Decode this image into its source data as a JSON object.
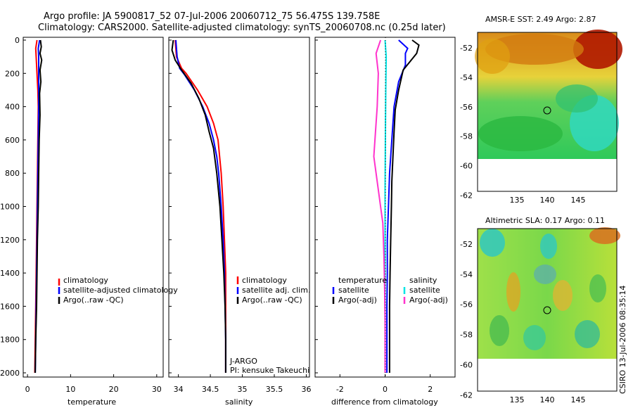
{
  "header": {
    "title_line1": "Argo profile: JA 5900817_52 07-Jul-2006 20060712_75 56.475S 139.758E",
    "title_line2": "Climatology: CARS2000. Satellite-adjusted climatology: synTS_20060708.nc (0.25d later)"
  },
  "side_label": "CSIRO 13-Jul-2006 08:35:14",
  "colors": {
    "red": "#ff0000",
    "blue": "#0000ff",
    "black": "#000000",
    "cyan": "#00e5e5",
    "magenta": "#ff33cc"
  },
  "panels": {
    "temperature": {
      "xlabel": "temperature",
      "xticks": [
        "0",
        "10",
        "20",
        "30"
      ],
      "legend": [
        "climatology",
        "satellite-adjusted climatology",
        "Argo(..raw -QC)"
      ]
    },
    "salinity": {
      "xlabel": "salinity",
      "xticks": [
        "34",
        "34.5",
        "35",
        "35.5",
        "36"
      ],
      "legend": [
        "climatology",
        "satellite adj. clim.",
        "Argo(..raw -QC)"
      ],
      "annot1": "J-ARGO",
      "annot2": "PI: kensuke Takeuchi"
    },
    "difference": {
      "xlabel": "difference from climatology",
      "xticks": [
        "-2",
        "0",
        "2"
      ],
      "legend_left_title": "temperature",
      "legend_left": [
        "satellite",
        "Argo(-adj)"
      ],
      "legend_right_title": "salinity",
      "legend_right": [
        "satellite",
        "Argo(-adj)"
      ]
    },
    "depth_ticks": [
      "0",
      "200",
      "400",
      "600",
      "800",
      "1000",
      "1200",
      "1400",
      "1600",
      "1800",
      "2000"
    ],
    "sst_map": {
      "title": "AMSR-E SST: 2.49 Argo: 2.87",
      "yticks": [
        "-52",
        "-54",
        "-56",
        "-58",
        "-60",
        "-62"
      ],
      "xticks": [
        "135",
        "140",
        "145"
      ]
    },
    "sla_map": {
      "title": "Altimetric SLA: 0.17 Argo: 0.11",
      "yticks": [
        "-52",
        "-54",
        "-56",
        "-58",
        "-60",
        "-62"
      ],
      "xticks": [
        "135",
        "140",
        "145"
      ]
    }
  },
  "chart_data": [
    {
      "type": "line",
      "xlabel": "temperature",
      "ylabel": "",
      "xlim": [
        -1,
        31.5
      ],
      "ylim": [
        2050,
        0
      ],
      "series": [
        {
          "name": "climatology",
          "color": "red",
          "points": [
            [
              2.2,
              0
            ],
            [
              1.9,
              50
            ],
            [
              2.0,
              100
            ],
            [
              2.2,
              200
            ],
            [
              2.4,
              300
            ],
            [
              2.5,
              400
            ],
            [
              2.4,
              600
            ],
            [
              2.3,
              800
            ],
            [
              2.2,
              1000
            ],
            [
              2.1,
              1200
            ],
            [
              2.0,
              1400
            ],
            [
              1.9,
              1600
            ],
            [
              1.8,
              1800
            ],
            [
              1.7,
              2000
            ]
          ]
        },
        {
          "name": "satellite-adjusted climatology",
          "color": "blue",
          "points": [
            [
              2.8,
              0
            ],
            [
              2.5,
              50
            ],
            [
              2.6,
              100
            ],
            [
              2.6,
              200
            ],
            [
              2.6,
              300
            ],
            [
              2.6,
              400
            ],
            [
              2.5,
              600
            ],
            [
              2.4,
              800
            ],
            [
              2.3,
              1000
            ],
            [
              2.2,
              1200
            ],
            [
              2.1,
              1400
            ],
            [
              2.0,
              1600
            ],
            [
              1.9,
              1800
            ],
            [
              1.8,
              2000
            ]
          ]
        },
        {
          "name": "Argo(..raw -QC)",
          "color": "black",
          "points": [
            [
              3.0,
              0
            ],
            [
              3.2,
              40
            ],
            [
              2.9,
              80
            ],
            [
              3.3,
              120
            ],
            [
              2.9,
              180
            ],
            [
              3.1,
              250
            ],
            [
              2.8,
              320
            ],
            [
              2.9,
              450
            ],
            [
              2.7,
              600
            ],
            [
              2.6,
              800
            ],
            [
              2.5,
              1000
            ],
            [
              2.3,
              1200
            ],
            [
              2.2,
              1400
            ],
            [
              2.1,
              1600
            ],
            [
              1.9,
              1800
            ],
            [
              1.8,
              2000
            ]
          ]
        }
      ]
    },
    {
      "type": "line",
      "xlabel": "salinity",
      "ylabel": "",
      "xlim": [
        33.85,
        36.05
      ],
      "ylim": [
        2050,
        0
      ],
      "series": [
        {
          "name": "climatology",
          "color": "red",
          "points": [
            [
              33.95,
              0
            ],
            [
              33.97,
              100
            ],
            [
              34.05,
              170
            ],
            [
              34.12,
              200
            ],
            [
              34.3,
              300
            ],
            [
              34.45,
              400
            ],
            [
              34.55,
              500
            ],
            [
              34.62,
              600
            ],
            [
              34.67,
              800
            ],
            [
              34.7,
              1000
            ],
            [
              34.72,
              1200
            ],
            [
              34.74,
              1400
            ],
            [
              34.74,
              1600
            ],
            [
              34.74,
              1800
            ],
            [
              34.74,
              2000
            ]
          ]
        },
        {
          "name": "satellite adj. clim.",
          "color": "blue",
          "points": [
            [
              33.96,
              0
            ],
            [
              33.98,
              100
            ],
            [
              34.02,
              170
            ],
            [
              34.1,
              210
            ],
            [
              34.25,
              300
            ],
            [
              34.38,
              400
            ],
            [
              34.48,
              500
            ],
            [
              34.55,
              600
            ],
            [
              34.6,
              700
            ],
            [
              34.63,
              800
            ],
            [
              34.67,
              1000
            ],
            [
              34.7,
              1200
            ],
            [
              34.72,
              1400
            ],
            [
              34.73,
              1600
            ],
            [
              34.74,
              1800
            ],
            [
              34.74,
              2000
            ]
          ]
        },
        {
          "name": "Argo(..raw -QC)",
          "color": "black",
          "points": [
            [
              33.92,
              0
            ],
            [
              33.9,
              60
            ],
            [
              33.95,
              120
            ],
            [
              34.05,
              180
            ],
            [
              34.2,
              260
            ],
            [
              34.32,
              350
            ],
            [
              34.42,
              450
            ],
            [
              34.48,
              550
            ],
            [
              34.55,
              650
            ],
            [
              34.6,
              800
            ],
            [
              34.65,
              1000
            ],
            [
              34.68,
              1200
            ],
            [
              34.71,
              1400
            ],
            [
              34.73,
              1600
            ],
            [
              34.74,
              1800
            ],
            [
              34.74,
              2000
            ]
          ]
        }
      ]
    },
    {
      "type": "line",
      "xlabel": "difference from climatology",
      "ylabel": "",
      "xlim": [
        -3.1,
        3.1
      ],
      "ylim": [
        2050,
        0
      ],
      "series": [
        {
          "name": "temperature satellite",
          "color": "blue",
          "points": [
            [
              0.6,
              0
            ],
            [
              1.0,
              50
            ],
            [
              0.9,
              80
            ],
            [
              0.9,
              150
            ],
            [
              0.6,
              250
            ],
            [
              0.4,
              400
            ],
            [
              0.3,
              600
            ],
            [
              0.2,
              800
            ],
            [
              0.15,
              1000
            ],
            [
              0.1,
              1200
            ],
            [
              0.1,
              1400
            ],
            [
              0.08,
              1600
            ],
            [
              0.08,
              1800
            ],
            [
              0.08,
              2000
            ]
          ]
        },
        {
          "name": "temperature Argo(-adj)",
          "color": "black",
          "points": [
            [
              1.2,
              0
            ],
            [
              1.5,
              30
            ],
            [
              1.4,
              80
            ],
            [
              0.8,
              180
            ],
            [
              0.6,
              300
            ],
            [
              0.45,
              420
            ],
            [
              0.4,
              550
            ],
            [
              0.35,
              700
            ],
            [
              0.3,
              850
            ],
            [
              0.28,
              1000
            ],
            [
              0.25,
              1200
            ],
            [
              0.22,
              1400
            ],
            [
              0.2,
              1600
            ],
            [
              0.2,
              1800
            ],
            [
              0.2,
              2000
            ]
          ]
        },
        {
          "name": "salinity satellite",
          "color": "cyan",
          "points": [
            [
              0.0,
              0
            ],
            [
              0.05,
              100
            ],
            [
              0.03,
              300
            ],
            [
              0.02,
              500
            ],
            [
              0.01,
              700
            ],
            [
              0.0,
              900
            ],
            [
              0.0,
              1200
            ],
            [
              0.0,
              1500
            ],
            [
              0.0,
              2000
            ]
          ]
        },
        {
          "name": "salinity Argo(-adj)",
          "color": "magenta",
          "points": [
            [
              -0.2,
              0
            ],
            [
              -0.4,
              80
            ],
            [
              -0.3,
              200
            ],
            [
              -0.35,
              400
            ],
            [
              -0.5,
              700
            ],
            [
              -0.3,
              900
            ],
            [
              -0.1,
              1100
            ],
            [
              -0.05,
              1300
            ],
            [
              -0.02,
              1500
            ],
            [
              0.0,
              1700
            ],
            [
              0.0,
              2000
            ]
          ]
        }
      ]
    }
  ]
}
